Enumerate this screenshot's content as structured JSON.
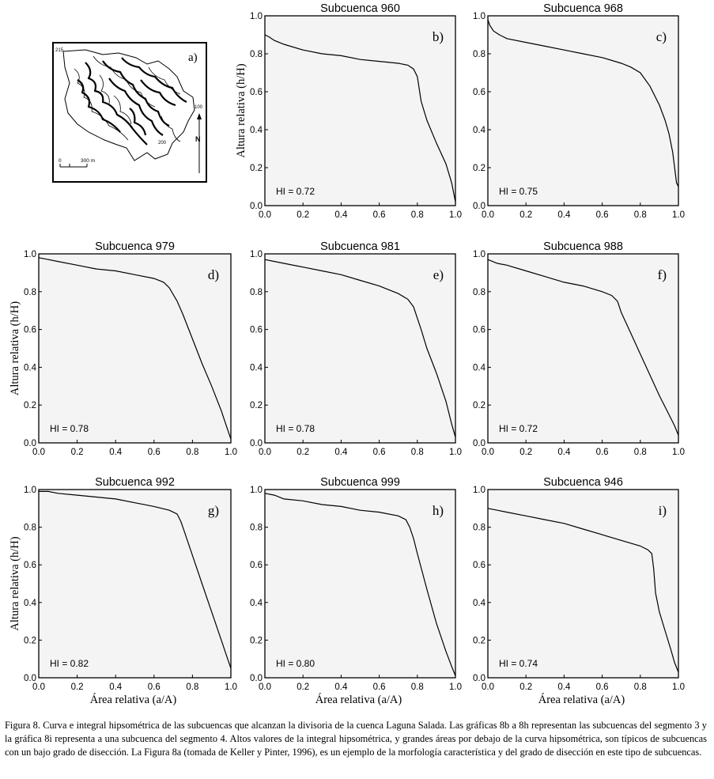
{
  "figure": {
    "caption": "Figura 8. Curva e integral hipsométrica de las subcuencas que alcanzan la divisoria de la cuenca Laguna Salada. Las gráficas 8b a 8h representan las subcuencas del segmento 3 y la gráfica 8i representa a una subcuenca del segmento 4. Altos valores de la integral hipsométrica, y grandes áreas por debajo de la curva hipsométrica, son típicos de subcuencas con un bajo grado de disección. La Figura 8a (tomada de Keller y Pinter, 1996), es un ejemplo de la morfología característica y del grado de disección en este tipo de subcuencas."
  },
  "map": {
    "panel_label": "a)",
    "label_top_left": "215",
    "label_right": "100",
    "label_bottom": "200",
    "north_label": "N",
    "scale_zero": "0",
    "scale_label": "300 m"
  },
  "axes": {
    "ylabel": "Altura relativa (h/H)",
    "xlabel": "Área relativa (a/A)",
    "ticks": [
      "0.0",
      "0.2",
      "0.4",
      "0.6",
      "0.8",
      "1.0"
    ]
  },
  "colors": {
    "plot_bg": "#f4f4f4",
    "line": "#000000"
  },
  "chart_data": [
    {
      "type": "line",
      "title": "Subcuenca 960",
      "panel": "b)",
      "annotation": "HI = 0.72",
      "xlim": [
        0,
        1
      ],
      "ylim": [
        0,
        1
      ],
      "x": [
        0,
        0.02,
        0.05,
        0.1,
        0.2,
        0.3,
        0.4,
        0.5,
        0.6,
        0.7,
        0.75,
        0.78,
        0.8,
        0.82,
        0.85,
        0.9,
        0.95,
        0.98,
        1.0
      ],
      "y": [
        0.9,
        0.89,
        0.87,
        0.85,
        0.82,
        0.8,
        0.79,
        0.77,
        0.76,
        0.75,
        0.74,
        0.72,
        0.68,
        0.55,
        0.45,
        0.33,
        0.22,
        0.12,
        0.02
      ]
    },
    {
      "type": "line",
      "title": "Subcuenca 968",
      "panel": "c)",
      "annotation": "HI = 0.75",
      "xlim": [
        0,
        1
      ],
      "ylim": [
        0,
        1
      ],
      "x": [
        0,
        0.01,
        0.03,
        0.06,
        0.1,
        0.2,
        0.3,
        0.4,
        0.5,
        0.6,
        0.7,
        0.75,
        0.8,
        0.85,
        0.9,
        0.93,
        0.95,
        0.97,
        0.98,
        0.99,
        1.0
      ],
      "y": [
        0.98,
        0.95,
        0.92,
        0.9,
        0.88,
        0.86,
        0.84,
        0.82,
        0.8,
        0.78,
        0.75,
        0.73,
        0.7,
        0.63,
        0.53,
        0.45,
        0.38,
        0.28,
        0.2,
        0.12,
        0.1
      ]
    },
    {
      "type": "line",
      "title": "Subcuenca 979",
      "panel": "d)",
      "annotation": "HI = 0.78",
      "xlim": [
        0,
        1
      ],
      "ylim": [
        0,
        1
      ],
      "x": [
        0,
        0.05,
        0.1,
        0.2,
        0.3,
        0.4,
        0.5,
        0.6,
        0.65,
        0.68,
        0.72,
        0.75,
        0.8,
        0.85,
        0.9,
        0.95,
        0.98,
        1.0
      ],
      "y": [
        0.98,
        0.97,
        0.96,
        0.94,
        0.92,
        0.91,
        0.89,
        0.87,
        0.85,
        0.82,
        0.75,
        0.68,
        0.55,
        0.42,
        0.3,
        0.17,
        0.08,
        0.02
      ]
    },
    {
      "type": "line",
      "title": "Subcuenca 981",
      "panel": "e)",
      "annotation": "HI = 0.78",
      "xlim": [
        0,
        1
      ],
      "ylim": [
        0,
        1
      ],
      "x": [
        0,
        0.05,
        0.1,
        0.2,
        0.3,
        0.4,
        0.5,
        0.6,
        0.7,
        0.75,
        0.78,
        0.8,
        0.82,
        0.85,
        0.9,
        0.95,
        0.98,
        1.0
      ],
      "y": [
        0.97,
        0.96,
        0.95,
        0.93,
        0.91,
        0.89,
        0.86,
        0.83,
        0.79,
        0.76,
        0.72,
        0.66,
        0.6,
        0.5,
        0.37,
        0.22,
        0.1,
        0.03
      ]
    },
    {
      "type": "line",
      "title": "Subcuenca 988",
      "panel": "f)",
      "annotation": "HI = 0.72",
      "xlim": [
        0,
        1
      ],
      "ylim": [
        0,
        1
      ],
      "x": [
        0,
        0.05,
        0.1,
        0.2,
        0.3,
        0.4,
        0.5,
        0.6,
        0.65,
        0.68,
        0.7,
        0.75,
        0.8,
        0.85,
        0.9,
        0.95,
        0.98,
        1.0
      ],
      "y": [
        0.97,
        0.95,
        0.94,
        0.91,
        0.88,
        0.85,
        0.83,
        0.8,
        0.78,
        0.75,
        0.69,
        0.58,
        0.47,
        0.36,
        0.25,
        0.15,
        0.09,
        0.04
      ]
    },
    {
      "type": "line",
      "title": "Subcuenca 992",
      "panel": "g)",
      "annotation": "HI = 0.82",
      "xlim": [
        0,
        1
      ],
      "ylim": [
        0,
        1
      ],
      "x": [
        0,
        0.05,
        0.1,
        0.2,
        0.3,
        0.4,
        0.5,
        0.6,
        0.68,
        0.72,
        0.74,
        0.76,
        0.8,
        0.85,
        0.9,
        0.95,
        0.98,
        1.0
      ],
      "y": [
        0.99,
        0.99,
        0.98,
        0.97,
        0.96,
        0.95,
        0.93,
        0.91,
        0.89,
        0.87,
        0.83,
        0.77,
        0.65,
        0.5,
        0.35,
        0.2,
        0.11,
        0.05
      ]
    },
    {
      "type": "line",
      "title": "Subcuenca 999",
      "panel": "h)",
      "annotation": "HI = 0.80",
      "xlim": [
        0,
        1
      ],
      "ylim": [
        0,
        1
      ],
      "x": [
        0,
        0.05,
        0.1,
        0.2,
        0.3,
        0.4,
        0.5,
        0.6,
        0.7,
        0.74,
        0.76,
        0.78,
        0.8,
        0.85,
        0.9,
        0.95,
        0.98,
        1.0
      ],
      "y": [
        0.98,
        0.97,
        0.95,
        0.94,
        0.92,
        0.91,
        0.89,
        0.88,
        0.86,
        0.84,
        0.8,
        0.74,
        0.66,
        0.47,
        0.29,
        0.14,
        0.06,
        0.01
      ]
    },
    {
      "type": "line",
      "title": "Subcuenca 946",
      "panel": "i)",
      "annotation": "HI = 0.74",
      "xlim": [
        0,
        1
      ],
      "ylim": [
        0,
        1
      ],
      "x": [
        0,
        0.05,
        0.1,
        0.2,
        0.3,
        0.4,
        0.5,
        0.6,
        0.7,
        0.8,
        0.84,
        0.86,
        0.87,
        0.88,
        0.9,
        0.93,
        0.96,
        0.98,
        1.0
      ],
      "y": [
        0.9,
        0.89,
        0.88,
        0.86,
        0.84,
        0.82,
        0.79,
        0.76,
        0.73,
        0.7,
        0.68,
        0.66,
        0.58,
        0.45,
        0.35,
        0.25,
        0.15,
        0.08,
        0.03
      ]
    }
  ]
}
